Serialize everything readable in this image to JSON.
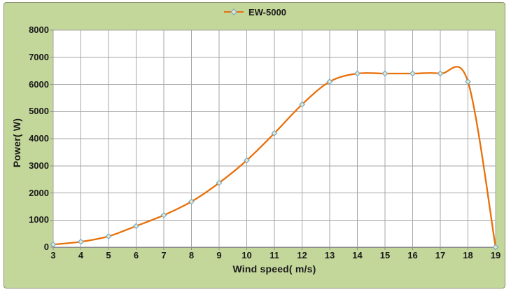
{
  "chart": {
    "legend": {
      "label": "EW-5000"
    },
    "colors": {
      "page_background": "#ffffff",
      "chart_background": "#c4d79b",
      "chart_border": "#8a9171",
      "plot_background": "#ffffff",
      "gridline": "#a6a6a6",
      "axis_line": "#8c8c8c",
      "text": "#1a1a1a",
      "series_line": "#e8700a",
      "marker_stroke": "#7da7c4",
      "marker_fill": "#dfe9cf"
    }
  },
  "chart_data": {
    "type": "line",
    "title": "",
    "xlabel": "Wind speed( m/s)",
    "ylabel": "Power( W)",
    "x": [
      3,
      4,
      5,
      6,
      7,
      8,
      9,
      10,
      11,
      12,
      13,
      14,
      15,
      16,
      17,
      18,
      19
    ],
    "series": [
      {
        "name": "EW-5000",
        "values": [
          100,
          200,
          400,
          780,
          1180,
          1680,
          2370,
          3200,
          4200,
          5260,
          6100,
          6400,
          6400,
          6400,
          6400,
          6100,
          0
        ]
      }
    ],
    "xlim": [
      3,
      19
    ],
    "ylim": [
      0,
      8000
    ],
    "x_ticks": [
      3,
      4,
      5,
      6,
      7,
      8,
      9,
      10,
      11,
      12,
      13,
      14,
      15,
      16,
      17,
      18,
      19
    ],
    "y_ticks": [
      0,
      1000,
      2000,
      3000,
      4000,
      5000,
      6000,
      7000,
      8000
    ],
    "grid": true,
    "legend_position": "top-center",
    "smooth": true,
    "marker": "diamond"
  }
}
